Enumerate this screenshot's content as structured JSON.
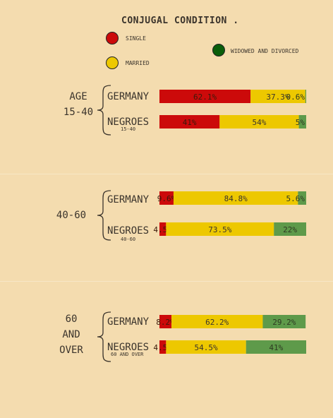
{
  "title": "CONJUGAL CONDITION .",
  "legend": [
    {
      "label": "SINGLE",
      "color": "#cc0a0a"
    },
    {
      "label": "MARRIED",
      "color": "#edc800"
    },
    {
      "label": "WIDOWED AND DIVORCED",
      "color": "#0a5e0a"
    }
  ],
  "groups": [
    {
      "label_lines": [
        "AGE",
        "15-40"
      ]
    },
    {
      "label_lines": [
        "40-60"
      ]
    },
    {
      "label_lines": [
        "60",
        "AND",
        "OVER"
      ]
    }
  ],
  "row_sublabels": [
    "15-40",
    "40-60",
    "60 AND OVER"
  ],
  "chart_data": {
    "type": "bar",
    "orientation": "horizontal",
    "stacked": true,
    "title": "CONJUGAL CONDITION .",
    "xlim": [
      0,
      100
    ],
    "categories": [
      "AGE 15-40 GERMANY",
      "AGE 15-40 NEGROES",
      "40-60 GERMANY",
      "40-60 NEGROES",
      "60 AND OVER GERMANY",
      "60 AND OVER NEGROES"
    ],
    "row_labels": [
      "GERMANY",
      "NEGROES",
      "GERMANY",
      "NEGROES",
      "GERMANY",
      "NEGROES"
    ],
    "series": [
      {
        "name": "SINGLE",
        "color": "#cc0a0a",
        "values": [
          62.1,
          41,
          9.6,
          4.5,
          8.2,
          4.5
        ],
        "labels": [
          "62.1%",
          "41%",
          "9.6%",
          "4.5%",
          "8.2%",
          "4.5%"
        ]
      },
      {
        "name": "MARRIED",
        "color": "#edc800",
        "values": [
          37.3,
          54,
          84.8,
          73.5,
          62.2,
          54.5
        ],
        "labels": [
          "37.3%",
          "54%",
          "84.8%",
          "73.5%",
          "62.2%",
          "54.5%"
        ]
      },
      {
        "name": "WIDOWED AND DIVORCED",
        "color": "#5e9a4a",
        "values": [
          0.6,
          5,
          5.6,
          22,
          29.2,
          41
        ],
        "labels": [
          "0.6%",
          "5%",
          "5.6%",
          "22%",
          "29.2%",
          "41%"
        ]
      }
    ]
  }
}
